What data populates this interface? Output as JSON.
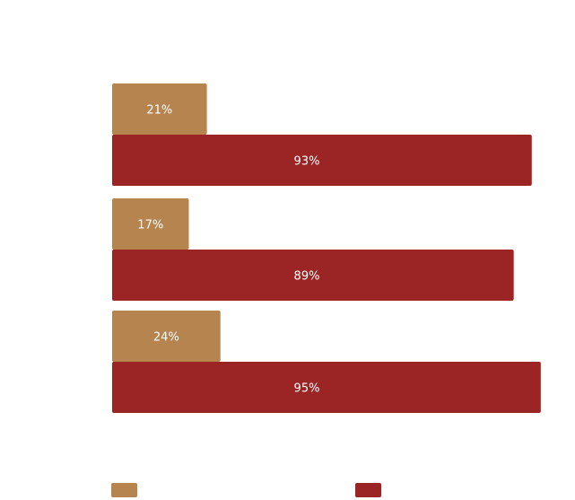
{
  "chart_data": {
    "type": "bar",
    "orientation": "horizontal",
    "title": "",
    "xlabel": "",
    "ylabel": "",
    "xlim": [
      0,
      100
    ],
    "categories": [
      "",
      "",
      ""
    ],
    "grid": false,
    "legend_position": "bottom",
    "series": [
      {
        "color": "#B5844F",
        "values": [
          21,
          17,
          24
        ],
        "labels": [
          "21%",
          "17%",
          "24%"
        ]
      },
      {
        "color": "#9B2425",
        "values": [
          93,
          89,
          95
        ],
        "labels": [
          "93%",
          "89%",
          "95%"
        ]
      }
    ]
  }
}
